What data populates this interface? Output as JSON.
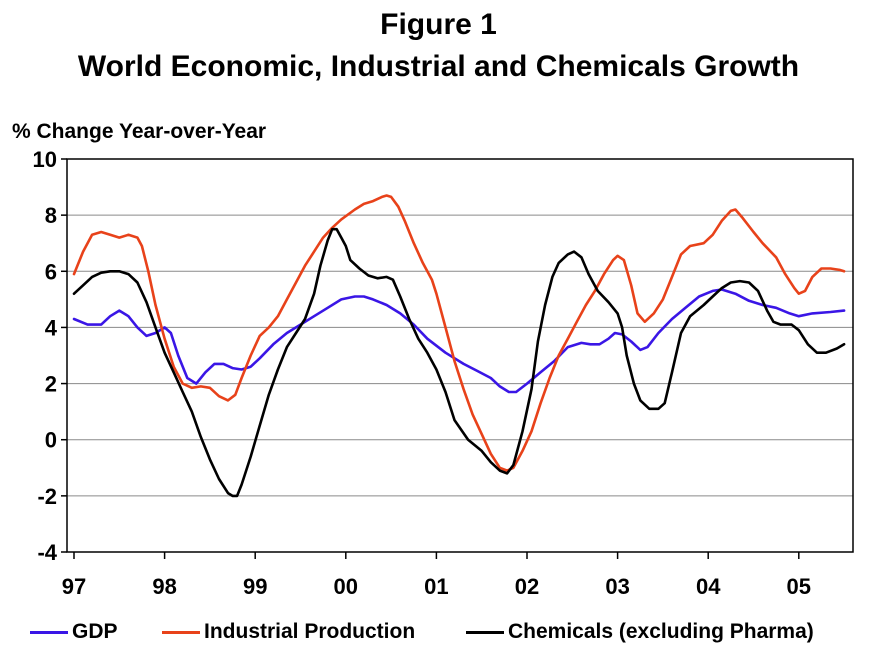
{
  "titles": {
    "line1": "Figure 1",
    "line2": "World Economic, Industrial and Chemicals Growth"
  },
  "chart_data": {
    "type": "line",
    "title": "World Economic, Industrial and Chemicals Growth",
    "ylabel": "% Change Year-over-Year",
    "xlabel": "",
    "ylim": [
      -4,
      10
    ],
    "yticks": [
      10,
      8,
      6,
      4,
      2,
      0,
      -2,
      -4
    ],
    "xlim": [
      1997,
      2005.85
    ],
    "xtick_labels": [
      "97",
      "98",
      "99",
      "00",
      "01",
      "02",
      "03",
      "04",
      "05"
    ],
    "grid": "horizontal",
    "legend_position": "bottom",
    "series": [
      {
        "name": "GDP",
        "color": "#3a16e6",
        "points": [
          [
            1997.0,
            4.3
          ],
          [
            1997.15,
            4.1
          ],
          [
            1997.3,
            4.1
          ],
          [
            1997.4,
            4.4
          ],
          [
            1997.5,
            4.6
          ],
          [
            1997.6,
            4.4
          ],
          [
            1997.7,
            4.0
          ],
          [
            1997.8,
            3.7
          ],
          [
            1997.9,
            3.8
          ],
          [
            1998.0,
            4.0
          ],
          [
            1998.07,
            3.8
          ],
          [
            1998.15,
            3.0
          ],
          [
            1998.25,
            2.2
          ],
          [
            1998.35,
            2.0
          ],
          [
            1998.45,
            2.4
          ],
          [
            1998.55,
            2.7
          ],
          [
            1998.65,
            2.7
          ],
          [
            1998.75,
            2.55
          ],
          [
            1998.85,
            2.5
          ],
          [
            1998.95,
            2.6
          ],
          [
            1999.05,
            2.9
          ],
          [
            1999.2,
            3.4
          ],
          [
            1999.35,
            3.8
          ],
          [
            1999.5,
            4.1
          ],
          [
            1999.65,
            4.4
          ],
          [
            1999.8,
            4.7
          ],
          [
            1999.95,
            5.0
          ],
          [
            2000.1,
            5.1
          ],
          [
            2000.2,
            5.1
          ],
          [
            2000.3,
            5.0
          ],
          [
            2000.45,
            4.8
          ],
          [
            2000.6,
            4.5
          ],
          [
            2000.75,
            4.1
          ],
          [
            2000.9,
            3.6
          ],
          [
            2001.1,
            3.1
          ],
          [
            2001.3,
            2.7
          ],
          [
            2001.45,
            2.45
          ],
          [
            2001.6,
            2.2
          ],
          [
            2001.7,
            1.9
          ],
          [
            2001.8,
            1.7
          ],
          [
            2001.88,
            1.7
          ],
          [
            2002.0,
            2.0
          ],
          [
            2002.15,
            2.4
          ],
          [
            2002.3,
            2.8
          ],
          [
            2002.45,
            3.3
          ],
          [
            2002.6,
            3.45
          ],
          [
            2002.7,
            3.4
          ],
          [
            2002.8,
            3.4
          ],
          [
            2002.9,
            3.6
          ],
          [
            2002.97,
            3.8
          ],
          [
            2003.05,
            3.75
          ],
          [
            2003.15,
            3.5
          ],
          [
            2003.25,
            3.2
          ],
          [
            2003.33,
            3.3
          ],
          [
            2003.45,
            3.8
          ],
          [
            2003.6,
            4.3
          ],
          [
            2003.75,
            4.7
          ],
          [
            2003.9,
            5.1
          ],
          [
            2004.05,
            5.3
          ],
          [
            2004.15,
            5.35
          ],
          [
            2004.3,
            5.2
          ],
          [
            2004.45,
            4.95
          ],
          [
            2004.6,
            4.8
          ],
          [
            2004.75,
            4.7
          ],
          [
            2004.9,
            4.5
          ],
          [
            2005.0,
            4.4
          ],
          [
            2005.15,
            4.5
          ],
          [
            2005.35,
            4.55
          ],
          [
            2005.5,
            4.6
          ]
        ]
      },
      {
        "name": "Industrial Production",
        "color": "#e8421a",
        "points": [
          [
            1997.0,
            5.9
          ],
          [
            1997.1,
            6.7
          ],
          [
            1997.2,
            7.3
          ],
          [
            1997.3,
            7.4
          ],
          [
            1997.4,
            7.3
          ],
          [
            1997.5,
            7.2
          ],
          [
            1997.6,
            7.3
          ],
          [
            1997.7,
            7.2
          ],
          [
            1997.75,
            6.9
          ],
          [
            1997.82,
            6.0
          ],
          [
            1997.9,
            4.8
          ],
          [
            1998.0,
            3.6
          ],
          [
            1998.1,
            2.6
          ],
          [
            1998.2,
            2.0
          ],
          [
            1998.3,
            1.85
          ],
          [
            1998.4,
            1.9
          ],
          [
            1998.5,
            1.85
          ],
          [
            1998.6,
            1.55
          ],
          [
            1998.7,
            1.4
          ],
          [
            1998.78,
            1.6
          ],
          [
            1998.85,
            2.2
          ],
          [
            1998.95,
            3.0
          ],
          [
            1999.05,
            3.7
          ],
          [
            1999.15,
            4.0
          ],
          [
            1999.25,
            4.4
          ],
          [
            1999.35,
            5.0
          ],
          [
            1999.45,
            5.6
          ],
          [
            1999.55,
            6.2
          ],
          [
            1999.65,
            6.7
          ],
          [
            1999.75,
            7.2
          ],
          [
            1999.85,
            7.55
          ],
          [
            1999.95,
            7.85
          ],
          [
            2000.1,
            8.2
          ],
          [
            2000.2,
            8.4
          ],
          [
            2000.3,
            8.5
          ],
          [
            2000.4,
            8.65
          ],
          [
            2000.45,
            8.7
          ],
          [
            2000.5,
            8.65
          ],
          [
            2000.58,
            8.3
          ],
          [
            2000.65,
            7.8
          ],
          [
            2000.75,
            7.0
          ],
          [
            2000.85,
            6.3
          ],
          [
            2000.95,
            5.7
          ],
          [
            2001.0,
            5.2
          ],
          [
            2001.1,
            4.0
          ],
          [
            2001.2,
            2.8
          ],
          [
            2001.3,
            1.8
          ],
          [
            2001.4,
            0.9
          ],
          [
            2001.5,
            0.2
          ],
          [
            2001.6,
            -0.5
          ],
          [
            2001.7,
            -1.0
          ],
          [
            2001.78,
            -1.1
          ],
          [
            2001.85,
            -1.0
          ],
          [
            2001.95,
            -0.4
          ],
          [
            2002.05,
            0.3
          ],
          [
            2002.15,
            1.3
          ],
          [
            2002.25,
            2.2
          ],
          [
            2002.35,
            3.0
          ],
          [
            2002.45,
            3.6
          ],
          [
            2002.55,
            4.2
          ],
          [
            2002.65,
            4.8
          ],
          [
            2002.75,
            5.3
          ],
          [
            2002.85,
            5.9
          ],
          [
            2002.95,
            6.4
          ],
          [
            2003.0,
            6.55
          ],
          [
            2003.07,
            6.4
          ],
          [
            2003.15,
            5.5
          ],
          [
            2003.22,
            4.5
          ],
          [
            2003.3,
            4.2
          ],
          [
            2003.4,
            4.5
          ],
          [
            2003.5,
            5.0
          ],
          [
            2003.6,
            5.8
          ],
          [
            2003.7,
            6.6
          ],
          [
            2003.8,
            6.9
          ],
          [
            2003.95,
            7.0
          ],
          [
            2004.05,
            7.3
          ],
          [
            2004.15,
            7.8
          ],
          [
            2004.25,
            8.15
          ],
          [
            2004.3,
            8.2
          ],
          [
            2004.38,
            7.9
          ],
          [
            2004.5,
            7.4
          ],
          [
            2004.6,
            7.0
          ],
          [
            2004.75,
            6.5
          ],
          [
            2004.85,
            5.9
          ],
          [
            2004.95,
            5.4
          ],
          [
            2005.0,
            5.2
          ],
          [
            2005.07,
            5.3
          ],
          [
            2005.15,
            5.8
          ],
          [
            2005.25,
            6.1
          ],
          [
            2005.35,
            6.1
          ],
          [
            2005.45,
            6.05
          ],
          [
            2005.5,
            6.0
          ]
        ]
      },
      {
        "name": "Chemicals (excluding Pharma)",
        "color": "#000000",
        "points": [
          [
            1997.0,
            5.2
          ],
          [
            1997.1,
            5.5
          ],
          [
            1997.2,
            5.8
          ],
          [
            1997.3,
            5.95
          ],
          [
            1997.4,
            6.0
          ],
          [
            1997.5,
            6.0
          ],
          [
            1997.6,
            5.9
          ],
          [
            1997.7,
            5.6
          ],
          [
            1997.8,
            4.9
          ],
          [
            1997.9,
            4.0
          ],
          [
            1998.0,
            3.1
          ],
          [
            1998.1,
            2.4
          ],
          [
            1998.2,
            1.7
          ],
          [
            1998.3,
            1.0
          ],
          [
            1998.4,
            0.1
          ],
          [
            1998.5,
            -0.7
          ],
          [
            1998.6,
            -1.4
          ],
          [
            1998.7,
            -1.9
          ],
          [
            1998.75,
            -2.0
          ],
          [
            1998.8,
            -2.0
          ],
          [
            1998.85,
            -1.6
          ],
          [
            1998.95,
            -0.6
          ],
          [
            1999.05,
            0.5
          ],
          [
            1999.15,
            1.6
          ],
          [
            1999.25,
            2.5
          ],
          [
            1999.35,
            3.3
          ],
          [
            1999.45,
            3.8
          ],
          [
            1999.55,
            4.3
          ],
          [
            1999.65,
            5.2
          ],
          [
            1999.72,
            6.2
          ],
          [
            1999.8,
            7.1
          ],
          [
            1999.85,
            7.5
          ],
          [
            1999.9,
            7.5
          ],
          [
            1999.95,
            7.2
          ],
          [
            2000.0,
            6.9
          ],
          [
            2000.05,
            6.4
          ],
          [
            2000.15,
            6.1
          ],
          [
            2000.25,
            5.85
          ],
          [
            2000.35,
            5.75
          ],
          [
            2000.45,
            5.8
          ],
          [
            2000.52,
            5.7
          ],
          [
            2000.6,
            5.1
          ],
          [
            2000.7,
            4.3
          ],
          [
            2000.8,
            3.6
          ],
          [
            2000.9,
            3.1
          ],
          [
            2001.0,
            2.5
          ],
          [
            2001.1,
            1.7
          ],
          [
            2001.2,
            0.7
          ],
          [
            2001.35,
            0.0
          ],
          [
            2001.5,
            -0.4
          ],
          [
            2001.6,
            -0.8
          ],
          [
            2001.7,
            -1.1
          ],
          [
            2001.78,
            -1.2
          ],
          [
            2001.85,
            -0.9
          ],
          [
            2001.95,
            0.3
          ],
          [
            2002.05,
            1.8
          ],
          [
            2002.12,
            3.5
          ],
          [
            2002.2,
            4.8
          ],
          [
            2002.28,
            5.8
          ],
          [
            2002.35,
            6.3
          ],
          [
            2002.45,
            6.6
          ],
          [
            2002.52,
            6.7
          ],
          [
            2002.6,
            6.5
          ],
          [
            2002.68,
            5.9
          ],
          [
            2002.78,
            5.3
          ],
          [
            2002.9,
            4.9
          ],
          [
            2003.0,
            4.5
          ],
          [
            2003.05,
            4.0
          ],
          [
            2003.1,
            3.0
          ],
          [
            2003.18,
            2.0
          ],
          [
            2003.25,
            1.4
          ],
          [
            2003.35,
            1.1
          ],
          [
            2003.45,
            1.1
          ],
          [
            2003.52,
            1.3
          ],
          [
            2003.6,
            2.4
          ],
          [
            2003.7,
            3.8
          ],
          [
            2003.8,
            4.4
          ],
          [
            2003.95,
            4.8
          ],
          [
            2004.05,
            5.1
          ],
          [
            2004.15,
            5.4
          ],
          [
            2004.25,
            5.6
          ],
          [
            2004.35,
            5.65
          ],
          [
            2004.45,
            5.6
          ],
          [
            2004.55,
            5.3
          ],
          [
            2004.65,
            4.6
          ],
          [
            2004.72,
            4.2
          ],
          [
            2004.8,
            4.1
          ],
          [
            2004.92,
            4.1
          ],
          [
            2005.0,
            3.9
          ],
          [
            2005.1,
            3.4
          ],
          [
            2005.2,
            3.1
          ],
          [
            2005.3,
            3.1
          ],
          [
            2005.42,
            3.25
          ],
          [
            2005.5,
            3.4
          ]
        ]
      }
    ]
  }
}
